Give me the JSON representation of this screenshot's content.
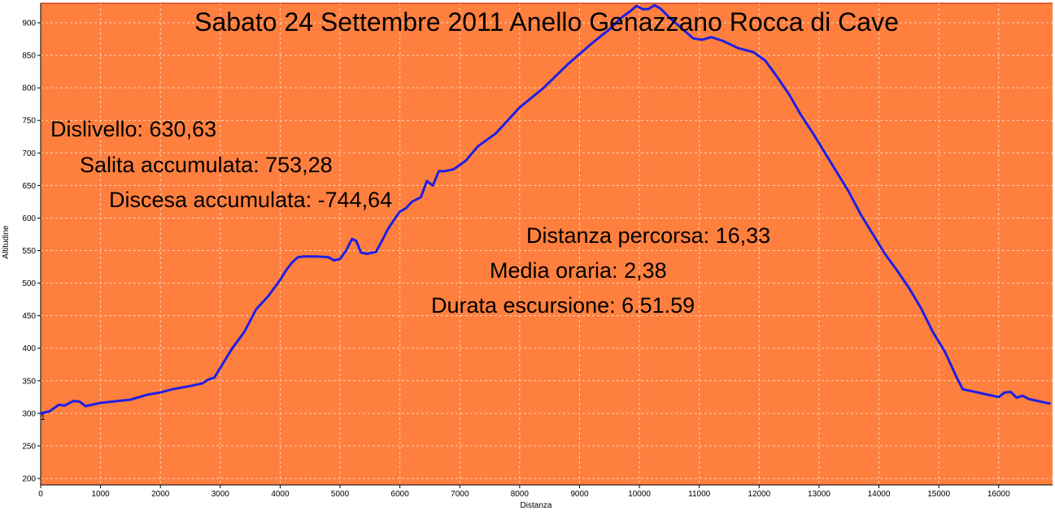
{
  "colors": {
    "background": "#FF7F3F",
    "line": "#1E1EE6",
    "top_rule": "#C83214",
    "grid": "#FFD2B4",
    "text": "#000000",
    "axis": "#000000",
    "outer": "#FFFFFF"
  },
  "chart_data": {
    "type": "line",
    "title": "Sabato 24 Settembre 2011 Anello Genazzano Rocca di Cave",
    "xlabel": "Distanza",
    "ylabel": "Altitudine",
    "xlim": [
      0,
      16900
    ],
    "ylim": [
      190,
      930
    ],
    "xticks": [
      0,
      1000,
      2000,
      3000,
      4000,
      5000,
      6000,
      7000,
      8000,
      9000,
      10000,
      11000,
      12000,
      13000,
      14000,
      15000,
      16000
    ],
    "yticks": [
      200,
      250,
      300,
      350,
      400,
      450,
      500,
      550,
      600,
      650,
      700,
      750,
      800,
      850,
      900
    ],
    "grid": true,
    "max_line": 930,
    "start_marker": "1",
    "annotations": [
      "Dislivello: 630,63",
      "Salita accumulata: 753,28",
      "Discesa accumulata: -744,64",
      "Distanza percorsa: 16,33",
      "Media oraria: 2,38",
      "Durata escursione: 6.51.59"
    ],
    "series": [
      {
        "x": [
          0,
          150,
          300,
          400,
          550,
          650,
          750,
          850,
          1000,
          1200,
          1500,
          1800,
          2000,
          2200,
          2500,
          2700,
          2800,
          2900,
          3000,
          3200,
          3400,
          3600,
          3800,
          4000,
          4100,
          4200,
          4300,
          4400,
          4600,
          4800,
          4900,
          5000,
          5100,
          5200,
          5270,
          5350,
          5450,
          5600,
          5700,
          5800,
          5900,
          6000,
          6100,
          6200,
          6350,
          6450,
          6550,
          6650,
          6750,
          6900,
          7100,
          7300,
          7600,
          8000,
          8400,
          8800,
          9200,
          9500,
          9700,
          9850,
          9950,
          10050,
          10150,
          10250,
          10350,
          10500,
          10700,
          10900,
          11050,
          11200,
          11400,
          11650,
          11900,
          12100,
          12300,
          12500,
          12700,
          12900,
          13100,
          13300,
          13500,
          13700,
          13900,
          14100,
          14300,
          14500,
          14700,
          14900,
          15100,
          15200,
          15300,
          15400,
          15600,
          15800,
          16000,
          16100,
          16200,
          16300,
          16400,
          16500,
          16700,
          16850
        ],
        "y": [
          300,
          303,
          313,
          312,
          319,
          318,
          311,
          313,
          316,
          318,
          321,
          329,
          332,
          337,
          342,
          346,
          352,
          355,
          370,
          400,
          425,
          460,
          480,
          505,
          520,
          532,
          540,
          541,
          541,
          540,
          535,
          537,
          550,
          568,
          565,
          547,
          545,
          548,
          565,
          583,
          597,
          610,
          615,
          625,
          632,
          657,
          650,
          672,
          672,
          675,
          688,
          710,
          730,
          770,
          800,
          836,
          868,
          890,
          908,
          918,
          926,
          921,
          921,
          927,
          922,
          908,
          892,
          876,
          874,
          878,
          872,
          861,
          855,
          842,
          817,
          790,
          758,
          730,
          700,
          670,
          640,
          605,
          575,
          545,
          520,
          493,
          462,
          425,
          395,
          375,
          355,
          337,
          333,
          329,
          325,
          332,
          333,
          324,
          327,
          322,
          318,
          315
        ]
      }
    ]
  }
}
